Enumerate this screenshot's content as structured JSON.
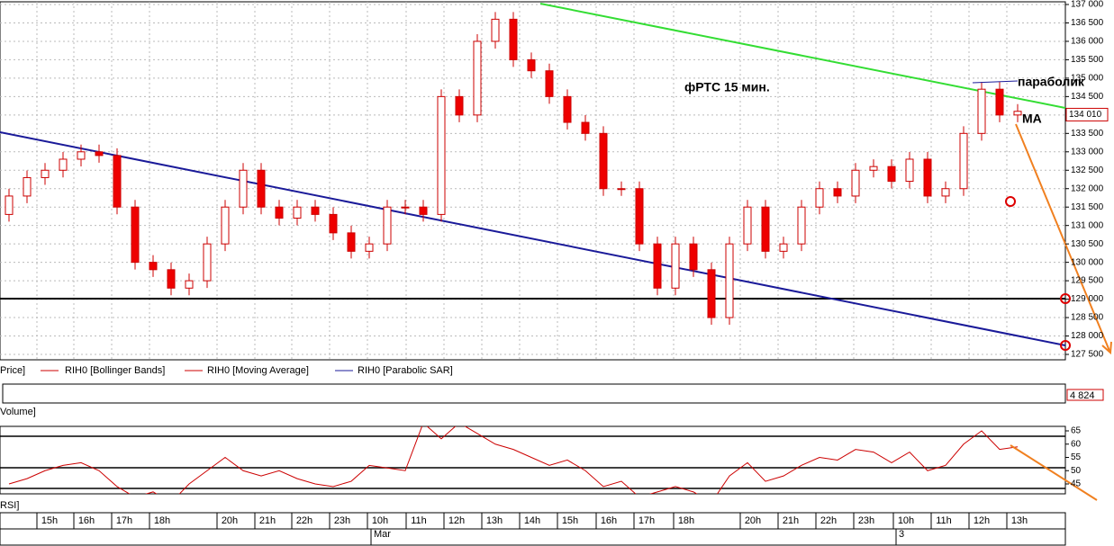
{
  "chart_data": {
    "type": "candlestick",
    "title": "фРТС   15 мин.",
    "annotations": [
      "параболик",
      "MA"
    ],
    "legend": [
      "Price]",
      "RIH0 [Bollinger Bands]",
      "RIH0 [Moving Average]",
      "RIH0 [Parabolic SAR]"
    ],
    "open": [
      131300,
      131800,
      132300,
      132500,
      132800,
      133000,
      132900,
      131500,
      130000,
      129800,
      129300,
      129500,
      130500,
      131500,
      132500,
      131500,
      131200,
      131500,
      131300,
      130800,
      130300,
      130500,
      131500,
      131500,
      131300,
      134500,
      134000,
      136000,
      136600,
      135500,
      135200,
      134500,
      133800,
      133500,
      132000,
      132000,
      130500,
      129300,
      130500,
      129800,
      128500,
      130500,
      131500,
      130300,
      130500,
      131500,
      132000,
      131800,
      132500,
      132600,
      132200,
      132800,
      131800,
      132000,
      133500,
      134700,
      134000
    ],
    "close": [
      131800,
      132300,
      132500,
      132800,
      133000,
      132900,
      131500,
      130000,
      129800,
      129300,
      129500,
      130500,
      131500,
      132500,
      131500,
      131200,
      131500,
      131300,
      130800,
      130300,
      130500,
      131500,
      131500,
      131300,
      134500,
      134000,
      136000,
      136600,
      135500,
      135200,
      134500,
      133800,
      133500,
      132000,
      132000,
      130500,
      129300,
      130500,
      129800,
      128500,
      130500,
      131500,
      130300,
      130500,
      131500,
      132000,
      131800,
      132500,
      132600,
      132200,
      132800,
      131800,
      132000,
      133500,
      134700,
      134000,
      134100
    ],
    "ylim": [
      127500,
      137000
    ],
    "yticks": [
      {
        "value": 127500,
        "label": "127 500"
      },
      {
        "value": 128000,
        "label": "128 000"
      },
      {
        "value": 128500,
        "label": "128 500"
      },
      {
        "value": 129000,
        "label": "129 000"
      },
      {
        "value": 129500,
        "label": "129 500"
      },
      {
        "value": 130000,
        "label": "130 000"
      },
      {
        "value": 130500,
        "label": "130 500"
      },
      {
        "value": 131000,
        "label": "131 000"
      },
      {
        "value": 131500,
        "label": "131 500"
      },
      {
        "value": 132000,
        "label": "132 000"
      },
      {
        "value": 132500,
        "label": "132 500"
      },
      {
        "value": 133000,
        "label": "133 000"
      },
      {
        "value": 133500,
        "label": "133 500"
      },
      {
        "value": 134000,
        "label": "134 000"
      },
      {
        "value": 134500,
        "label": "134 500"
      },
      {
        "value": 135000,
        "label": "135 000"
      },
      {
        "value": 135500,
        "label": "135 500"
      },
      {
        "value": 136000,
        "label": "136 000"
      },
      {
        "value": 136500,
        "label": "136 500"
      },
      {
        "value": 137000,
        "label": "137 000"
      }
    ],
    "last_price": {
      "value": 134010,
      "label": "134 010"
    },
    "volume_label": "Volume]",
    "volume_last": {
      "value": 4824,
      "label": "4 824"
    },
    "rsi_label": "RSI]",
    "rsi": [
      45,
      47,
      50,
      52,
      53,
      50,
      44,
      40,
      42,
      38,
      45,
      50,
      55,
      50,
      48,
      50,
      47,
      45,
      44,
      46,
      52,
      51,
      50,
      68,
      62,
      68,
      64,
      60,
      58,
      55,
      52,
      54,
      50,
      44,
      46,
      40,
      42,
      44,
      42,
      38,
      48,
      53,
      46,
      48,
      52,
      55,
      54,
      58,
      57,
      53,
      57,
      50,
      52,
      60,
      65,
      58,
      59
    ],
    "rsi_ylim": [
      45,
      65
    ],
    "rsi_yticks": [
      45,
      50,
      55,
      60,
      65
    ],
    "hours": [
      "15h",
      "16h",
      "17h",
      "18h",
      "20h",
      "21h",
      "22h",
      "23h",
      "10h",
      "11h",
      "12h",
      "13h",
      "14h",
      "15h",
      "16h",
      "17h",
      "18h",
      "20h",
      "21h",
      "22h",
      "23h",
      "10h",
      "11h",
      "12h",
      "13h"
    ],
    "dates": [
      "Mar",
      "3"
    ]
  }
}
